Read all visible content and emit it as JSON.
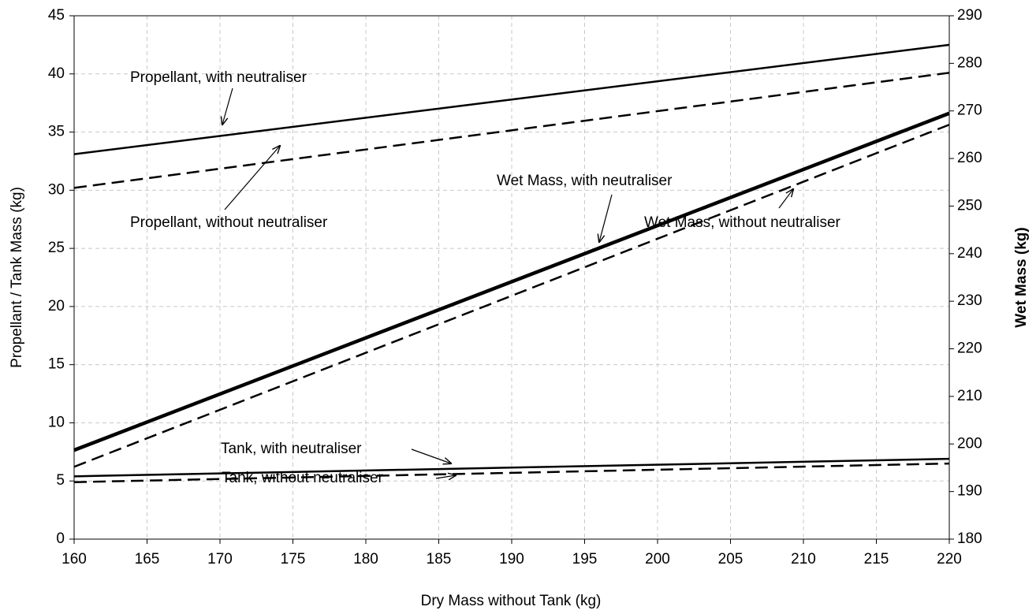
{
  "chart_data": {
    "type": "line",
    "x": [
      160,
      220
    ],
    "xlabel": "Dry Mass without Tank (kg)",
    "ylabel": "Propellant / Tank Mass (kg)",
    "y2label": "Wet Mass (kg)",
    "xlim": [
      160,
      220
    ],
    "xticks": [
      160,
      165,
      170,
      175,
      180,
      185,
      190,
      195,
      200,
      205,
      210,
      215,
      220
    ],
    "ylim": [
      0,
      45
    ],
    "yticks": [
      0,
      5,
      10,
      15,
      20,
      25,
      30,
      35,
      40,
      45
    ],
    "y2lim": [
      180,
      290
    ],
    "y2ticks": [
      180,
      190,
      200,
      210,
      220,
      230,
      240,
      250,
      260,
      270,
      280,
      290
    ],
    "grid": true,
    "series": [
      {
        "name": "Propellant, with neutraliser",
        "color": "#000000",
        "line_style": "solid",
        "values": [
          33.1,
          42.5
        ]
      },
      {
        "name": "Propellant, without neutraliser",
        "color": "#000000",
        "line_style": "dashed",
        "values": [
          30.2,
          40.1
        ]
      },
      {
        "name": "Wet Mass, with neutraliser",
        "color": "#000000",
        "line_style": "solid",
        "axis": "y2",
        "values": [
          198.7,
          269.5
        ]
      },
      {
        "name": "Wet Mass, without neutraliser",
        "color": "#000000",
        "line_style": "dashed",
        "axis": "y2",
        "values": [
          195.2,
          267.1
        ]
      },
      {
        "name": "Tank, with neutraliser",
        "color": "#000000",
        "line_style": "solid",
        "values": [
          5.4,
          6.9
        ]
      },
      {
        "name": "Tank, without neutraliser",
        "color": "#000000",
        "line_style": "dashed",
        "values": [
          4.9,
          6.5
        ]
      }
    ]
  }
}
